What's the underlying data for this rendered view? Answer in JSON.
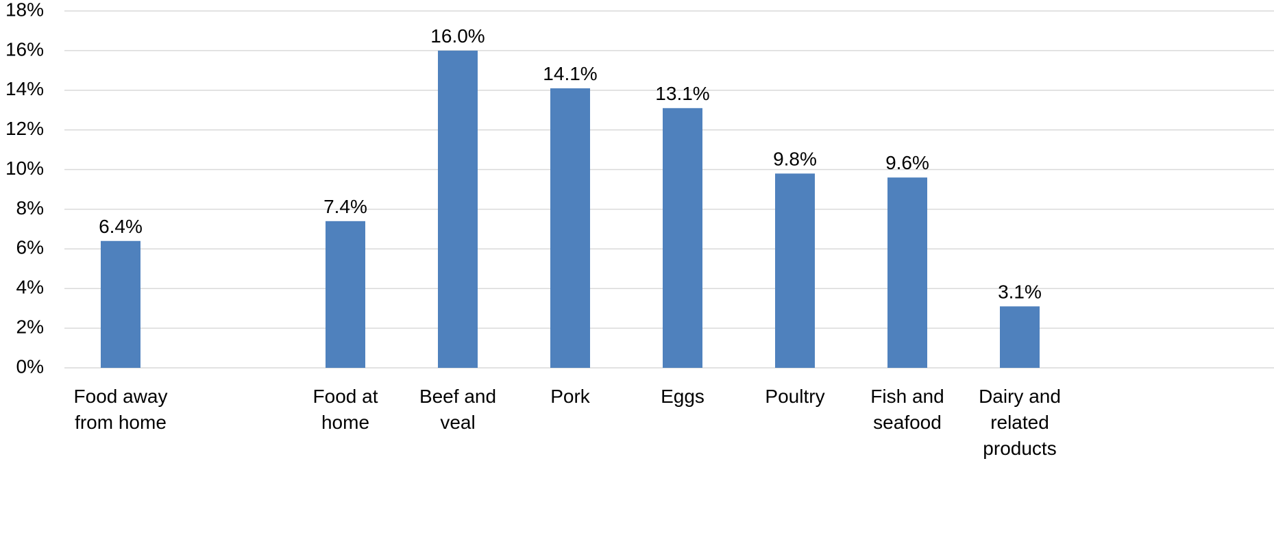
{
  "chart_data": {
    "type": "bar",
    "title": "",
    "xlabel": "",
    "ylabel": "",
    "ylim": [
      0,
      18
    ],
    "y_tick_step": 2,
    "y_tick_format": "percent",
    "grid": true,
    "bar_color": "#4f81bd",
    "grid_color": "#d9d9d9",
    "legend": "none",
    "categories": [
      [
        "Food away",
        "from home"
      ],
      [],
      [
        "Food at",
        "home"
      ],
      [
        "Beef and",
        "veal"
      ],
      [
        "Pork"
      ],
      [
        "Eggs"
      ],
      [
        "Poultry"
      ],
      [
        "Fish and",
        "seafood"
      ],
      [
        "Dairy and",
        "related",
        "products"
      ]
    ],
    "values": [
      6.4,
      null,
      7.4,
      16.0,
      14.1,
      13.1,
      9.8,
      9.6,
      3.1
    ],
    "data_labels": [
      "6.4%",
      "",
      "7.4%",
      "16.0%",
      "14.1%",
      "13.1%",
      "9.8%",
      "9.6%",
      "3.1%"
    ],
    "y_tick_labels": [
      "0%",
      "2%",
      "4%",
      "6%",
      "8%",
      "10%",
      "12%",
      "14%",
      "16%",
      "18%"
    ]
  }
}
